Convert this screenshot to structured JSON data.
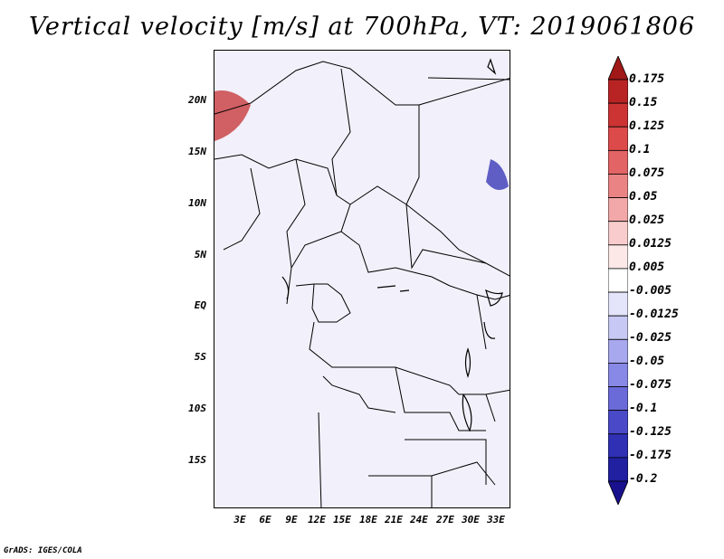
{
  "title": "Vertical velocity [m/s] at 700hPa, VT: 2019061806",
  "credit": "GrADS: IGES/COLA",
  "lat_ticks": [
    "20N",
    "15N",
    "10N",
    "5N",
    "EQ",
    "5S",
    "10S",
    "15S"
  ],
  "lon_ticks": [
    "3E",
    "6E",
    "9E",
    "12E",
    "15E",
    "18E",
    "21E",
    "24E",
    "27E",
    "30E",
    "33E"
  ],
  "colorbar": {
    "labels": [
      "0.175",
      "0.15",
      "0.125",
      "0.1",
      "0.075",
      "0.05",
      "0.025",
      "0.0125",
      "0.005",
      "-0.005",
      "-0.0125",
      "-0.025",
      "-0.05",
      "-0.075",
      "-0.1",
      "-0.125",
      "-0.175",
      "-0.2"
    ],
    "colors": [
      "#a01818",
      "#b82424",
      "#cc3434",
      "#dc4a4a",
      "#e26464",
      "#ea8484",
      "#f2a8a8",
      "#f8cccc",
      "#fde8e8",
      "#ffffff",
      "#e4e4fa",
      "#c8c8f4",
      "#a8a8ee",
      "#8888e6",
      "#6a6ad8",
      "#4a4ac8",
      "#3030b4",
      "#2020a0",
      "#18108c"
    ]
  },
  "colors": {
    "positive": "#dc3c3c",
    "negative": "#4848d0",
    "border": "#000000"
  }
}
